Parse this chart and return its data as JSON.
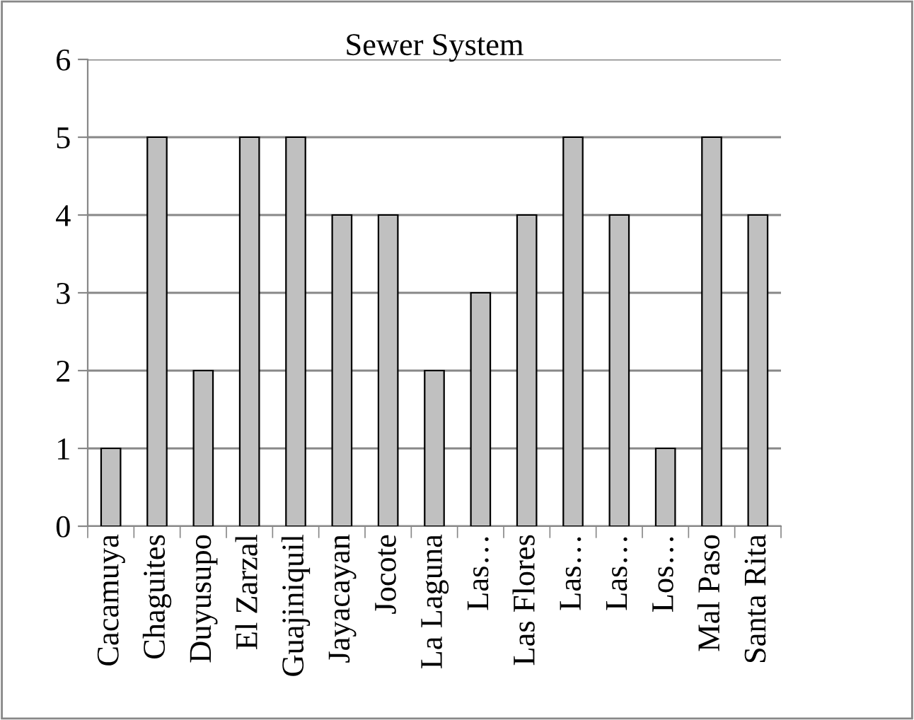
{
  "chart_data": {
    "type": "bar",
    "title": "Sewer System",
    "categories": [
      "Cacamuya",
      "Chaguites",
      "Duyusupo",
      "El Zarzal",
      "Guajiniquil",
      "Jayacayan",
      "Jocote",
      "La Laguna",
      "Las…",
      "Las Flores",
      "Las…",
      "Las…",
      "Los…",
      "Mal Paso",
      "Santa Rita"
    ],
    "values": [
      1,
      5,
      2,
      5,
      5,
      4,
      4,
      2,
      3,
      4,
      5,
      4,
      1,
      5,
      4
    ],
    "color": "#c0c0c0",
    "ylim": [
      0,
      6
    ],
    "yticks": [
      0,
      1,
      2,
      3,
      4,
      5,
      6
    ],
    "grid": "y",
    "legend": false
  }
}
